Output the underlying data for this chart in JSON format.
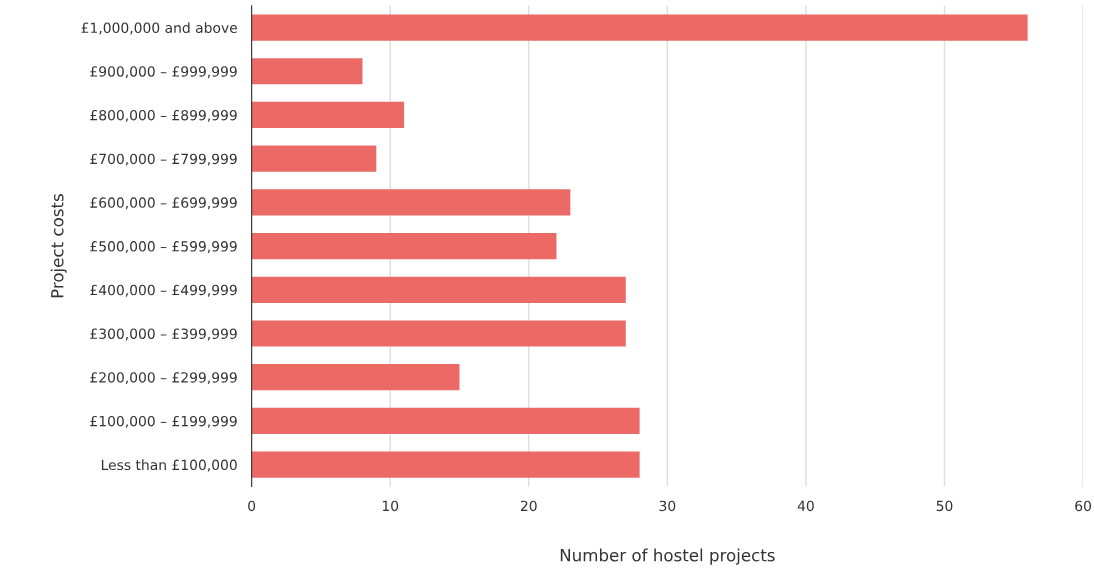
{
  "chart_data": {
    "type": "bar",
    "orientation": "horizontal",
    "xlabel": "Number of hostel projects",
    "ylabel": "Project costs",
    "categories": [
      "£1,000,000 and above",
      "£900,000 – £999,999",
      "£800,000 – £899,999",
      "£700,000 – £799,999",
      "£600,000 – £699,999",
      "£500,000 – £599,999",
      "£400,000 – £499,999",
      "£300,000 – £399,999",
      "£200,000 – £299,999",
      "£100,000 – £199,999",
      "Less than £100,000"
    ],
    "values": [
      56,
      8,
      11,
      9,
      23,
      22,
      27,
      27,
      15,
      28,
      28
    ],
    "color": "#ec6a66",
    "xlim": [
      0,
      60
    ],
    "xticks": [
      0,
      10,
      20,
      30,
      40,
      50,
      60
    ],
    "grid": "x",
    "legend": false
  }
}
